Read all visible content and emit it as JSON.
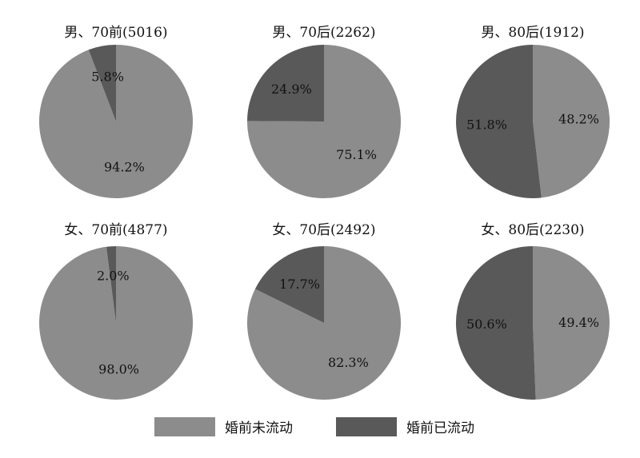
{
  "chart_data": {
    "type": "pie",
    "legend": {
      "placement": "bottom",
      "items": [
        {
          "label": "婚前未流动",
          "color": "#8c8c8c"
        },
        {
          "label": "婚前已流动",
          "color": "#595959"
        }
      ]
    },
    "panels": [
      {
        "title": "男、70前(5016)",
        "values": [
          94.2,
          5.8
        ],
        "labels": [
          "94.2%",
          "5.8%"
        ]
      },
      {
        "title": "男、70后(2262)",
        "values": [
          75.1,
          24.9
        ],
        "labels": [
          "75.1%",
          "24.9%"
        ]
      },
      {
        "title": "男、80后(1912)",
        "values": [
          48.2,
          51.8
        ],
        "labels": [
          "48.2%",
          "51.8%"
        ]
      },
      {
        "title": "女、70前(4877)",
        "values": [
          98.0,
          2.0
        ],
        "labels": [
          "98.0%",
          "2.0%"
        ]
      },
      {
        "title": "女、70后(2492)",
        "values": [
          82.3,
          17.7
        ],
        "labels": [
          "82.3%",
          "17.7%"
        ]
      },
      {
        "title": "女、80后(2230)",
        "values": [
          49.4,
          50.6
        ],
        "labels": [
          "49.4%",
          "50.6%"
        ]
      }
    ]
  }
}
